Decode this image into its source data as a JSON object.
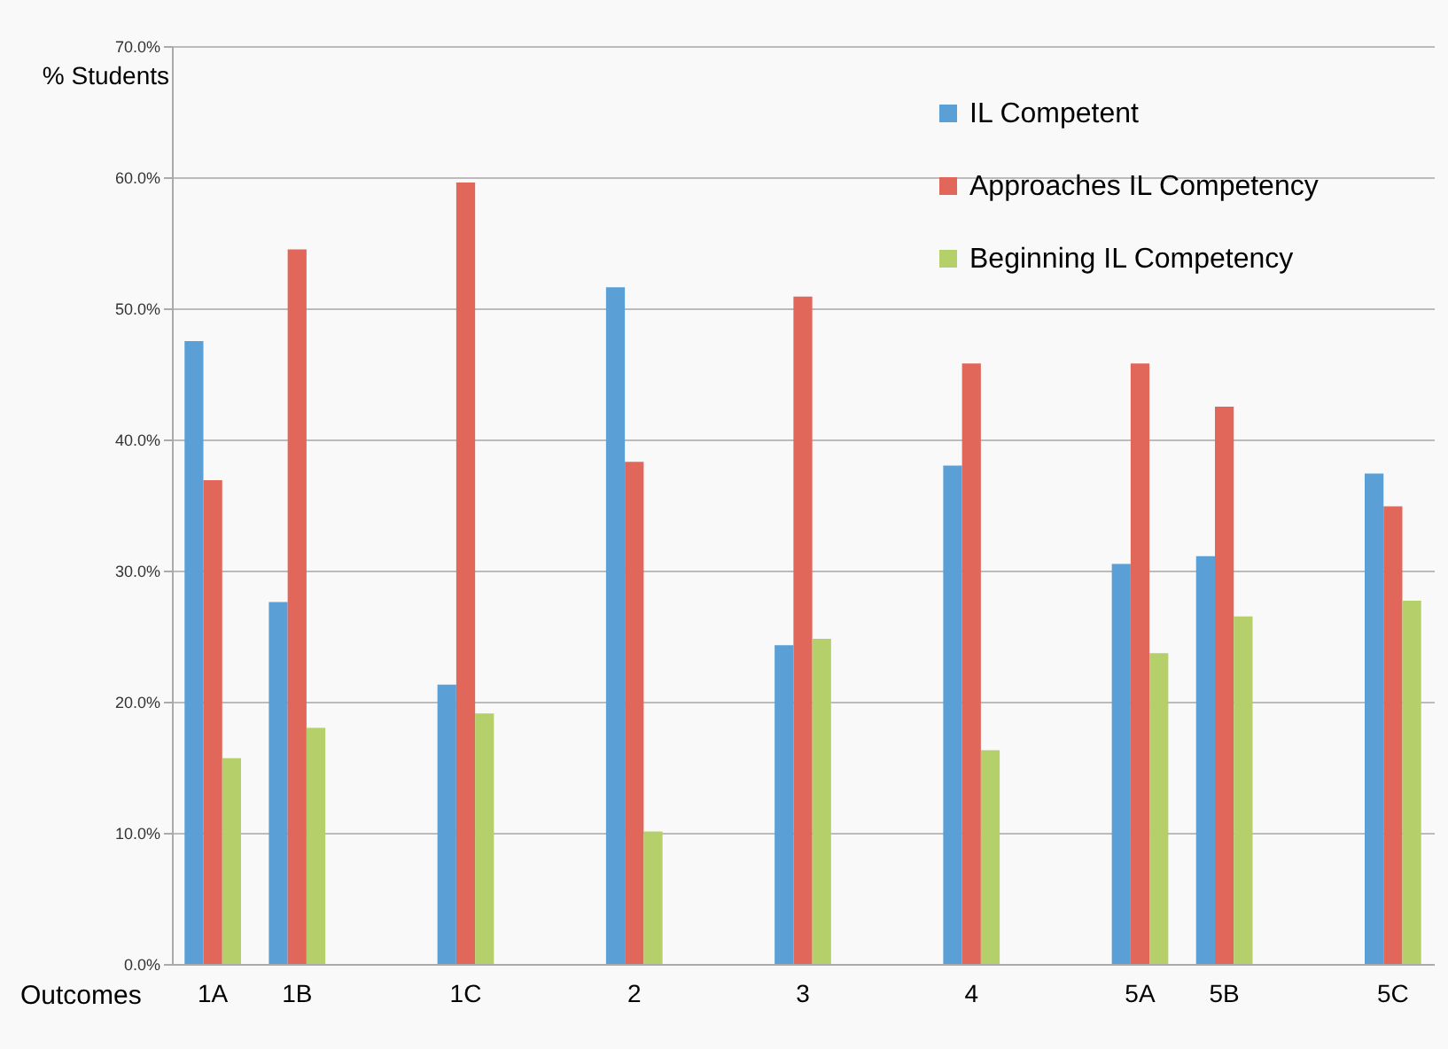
{
  "chart_data": {
    "type": "bar",
    "xlabel": "Outcomes",
    "ylabel": "% Students",
    "categories": [
      "1A",
      "1B",
      null,
      "1C",
      null,
      "2",
      null,
      "3",
      null,
      "4",
      null,
      "5A",
      "5B",
      null,
      "5C"
    ],
    "series": [
      {
        "name": "IL Competent",
        "color": "#5a9fd6",
        "values": [
          47.5,
          27.6,
          null,
          21.3,
          null,
          51.6,
          null,
          24.3,
          null,
          38.0,
          null,
          30.5,
          31.1,
          null,
          37.4
        ]
      },
      {
        "name": "Approaches IL Competency",
        "color": "#e0675a",
        "values": [
          36.9,
          54.5,
          null,
          59.6,
          null,
          38.3,
          null,
          50.9,
          null,
          45.8,
          null,
          45.8,
          42.5,
          null,
          34.9
        ]
      },
      {
        "name": "Beginning IL Competency",
        "color": "#b5cf6b",
        "values": [
          15.7,
          18.0,
          null,
          19.1,
          null,
          10.1,
          null,
          24.8,
          null,
          16.3,
          null,
          23.7,
          26.5,
          null,
          27.7
        ]
      }
    ],
    "ylim": [
      0,
      70
    ],
    "yticks": [
      {
        "value": 0,
        "label": "0.0%"
      },
      {
        "value": 10,
        "label": "10.0%"
      },
      {
        "value": 20,
        "label": "20.0%"
      },
      {
        "value": 30,
        "label": "30.0%"
      },
      {
        "value": 40,
        "label": "40.0%"
      },
      {
        "value": 50,
        "label": "50.0%"
      },
      {
        "value": 60,
        "label": "60.0%"
      },
      {
        "value": 70,
        "label": "70.0%"
      }
    ],
    "grid": "y",
    "legend": "top right"
  }
}
